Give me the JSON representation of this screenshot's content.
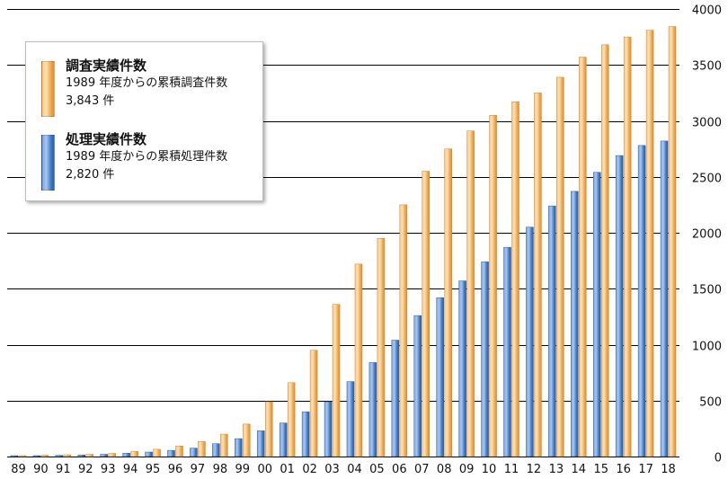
{
  "chart_data": {
    "type": "bar",
    "title": "",
    "xlabel": "",
    "ylabel": "",
    "ylim": [
      0,
      4000
    ],
    "yticks": [
      0,
      500,
      1000,
      1500,
      2000,
      2500,
      3000,
      3500,
      4000
    ],
    "grid": true,
    "y_axis_side": "right",
    "legend_position": "top-left",
    "categories": [
      "89",
      "90",
      "91",
      "92",
      "93",
      "94",
      "95",
      "96",
      "97",
      "98",
      "99",
      "00",
      "01",
      "02",
      "03",
      "04",
      "05",
      "06",
      "07",
      "08",
      "09",
      "10",
      "11",
      "12",
      "13",
      "14",
      "15",
      "16",
      "17",
      "18"
    ],
    "series": [
      {
        "name": "調査実績件数",
        "color": "#f0a848",
        "values": [
          5,
          12,
          16,
          20,
          28,
          45,
          65,
          95,
          135,
          200,
          290,
          490,
          660,
          950,
          1360,
          1720,
          1950,
          2250,
          2550,
          2750,
          2910,
          3050,
          3170,
          3250,
          3390,
          3570,
          3680,
          3750,
          3810,
          3843
        ]
      },
      {
        "name": "処理実績件数",
        "color": "#3c78c8",
        "values": [
          3,
          8,
          11,
          14,
          20,
          30,
          40,
          55,
          75,
          115,
          160,
          230,
          300,
          400,
          490,
          670,
          840,
          1040,
          1260,
          1420,
          1570,
          1740,
          1870,
          2050,
          2240,
          2370,
          2540,
          2690,
          2780,
          2820
        ]
      }
    ],
    "legend": [
      {
        "title": "調査実績件数",
        "desc": "1989 年度からの累積調査件数",
        "total": "3,843 件"
      },
      {
        "title": "処理実績件数",
        "desc": "1989 年度からの累積処理件数",
        "total": "2,820 件"
      }
    ]
  }
}
